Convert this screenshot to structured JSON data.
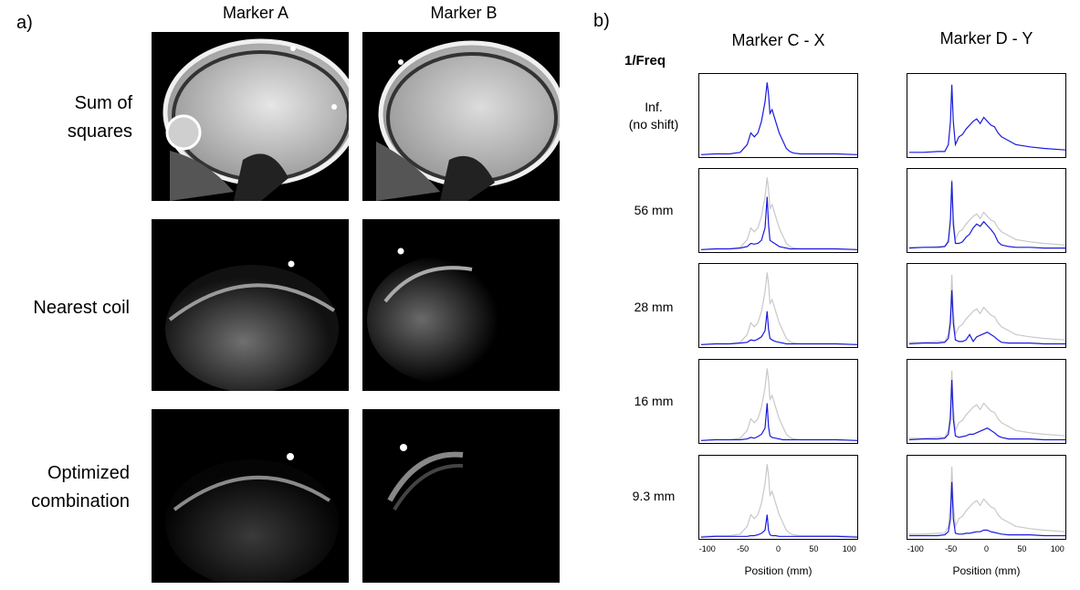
{
  "panel_a": {
    "label": "a)",
    "columns": [
      "Marker A",
      "Marker B"
    ],
    "rows": [
      {
        "label_lines": [
          "Sum of",
          "squares"
        ]
      },
      {
        "label_lines": [
          "Nearest coil"
        ]
      },
      {
        "label_lines": [
          "Optimized",
          "combination"
        ]
      }
    ]
  },
  "panel_b": {
    "label": "b)",
    "freq_header": "1/Freq"
  },
  "chart_data": [
    {
      "type": "line",
      "title": "Marker C - X",
      "xlabel": "Position (mm)",
      "xlim": [
        -110,
        110
      ],
      "xticks": [
        -100,
        -50,
        0,
        50,
        100
      ],
      "row_labels": [
        [
          "Inf.",
          "(no shift)"
        ],
        [
          "56 mm"
        ],
        [
          "28 mm"
        ],
        [
          "16 mm"
        ],
        [
          "9.3 mm"
        ]
      ],
      "series_color": "#1a1adc",
      "reference_color": "#c8c8c8",
      "x": [
        -110,
        -90,
        -70,
        -55,
        -45,
        -40,
        -35,
        -30,
        -25,
        -20,
        -17,
        -15,
        -13,
        -10,
        -5,
        0,
        5,
        10,
        15,
        20,
        30,
        40,
        60,
        80,
        110
      ],
      "reference": [
        0.02,
        0.03,
        0.03,
        0.05,
        0.15,
        0.3,
        0.25,
        0.3,
        0.45,
        0.7,
        0.95,
        0.8,
        0.55,
        0.6,
        0.45,
        0.3,
        0.2,
        0.1,
        0.06,
        0.04,
        0.03,
        0.03,
        0.03,
        0.03,
        0.02
      ],
      "series": [
        {
          "values": [
            0.02,
            0.03,
            0.03,
            0.05,
            0.15,
            0.3,
            0.25,
            0.3,
            0.45,
            0.7,
            0.95,
            0.8,
            0.55,
            0.6,
            0.45,
            0.3,
            0.2,
            0.1,
            0.06,
            0.04,
            0.03,
            0.03,
            0.03,
            0.03,
            0.02
          ]
        },
        {
          "values": [
            0.02,
            0.03,
            0.03,
            0.04,
            0.06,
            0.1,
            0.09,
            0.1,
            0.14,
            0.3,
            0.7,
            0.35,
            0.14,
            0.12,
            0.09,
            0.06,
            0.05,
            0.04,
            0.03,
            0.03,
            0.03,
            0.03,
            0.03,
            0.03,
            0.02
          ]
        },
        {
          "values": [
            0.02,
            0.03,
            0.03,
            0.04,
            0.05,
            0.08,
            0.07,
            0.09,
            0.12,
            0.2,
            0.45,
            0.22,
            0.1,
            0.08,
            0.06,
            0.05,
            0.04,
            0.03,
            0.03,
            0.03,
            0.03,
            0.03,
            0.03,
            0.03,
            0.02
          ]
        },
        {
          "values": [
            0.02,
            0.03,
            0.03,
            0.03,
            0.04,
            0.06,
            0.05,
            0.07,
            0.1,
            0.18,
            0.5,
            0.2,
            0.08,
            0.06,
            0.05,
            0.04,
            0.03,
            0.03,
            0.03,
            0.03,
            0.03,
            0.03,
            0.03,
            0.03,
            0.02
          ]
        },
        {
          "values": [
            0.01,
            0.02,
            0.02,
            0.02,
            0.02,
            0.03,
            0.03,
            0.04,
            0.06,
            0.1,
            0.3,
            0.1,
            0.04,
            0.03,
            0.03,
            0.02,
            0.02,
            0.02,
            0.02,
            0.02,
            0.02,
            0.02,
            0.02,
            0.02,
            0.01
          ]
        }
      ]
    },
    {
      "type": "line",
      "title": "Marker D - Y",
      "xlabel": "Position (mm)",
      "xlim": [
        -110,
        110
      ],
      "xticks": [
        -100,
        -50,
        0,
        50,
        100
      ],
      "series_color": "#1a1adc",
      "reference_color": "#c8c8c8",
      "x": [
        -110,
        -90,
        -70,
        -60,
        -55,
        -52,
        -50,
        -48,
        -45,
        -40,
        -35,
        -30,
        -25,
        -20,
        -15,
        -10,
        -5,
        0,
        5,
        10,
        15,
        20,
        30,
        40,
        60,
        80,
        110
      ],
      "reference": [
        0.05,
        0.05,
        0.06,
        0.06,
        0.15,
        0.45,
        0.92,
        0.45,
        0.15,
        0.25,
        0.28,
        0.35,
        0.4,
        0.45,
        0.48,
        0.42,
        0.5,
        0.45,
        0.4,
        0.38,
        0.3,
        0.25,
        0.2,
        0.15,
        0.12,
        0.1,
        0.08
      ],
      "series": [
        {
          "values": [
            0.05,
            0.05,
            0.06,
            0.06,
            0.15,
            0.45,
            0.92,
            0.45,
            0.15,
            0.25,
            0.28,
            0.35,
            0.4,
            0.45,
            0.48,
            0.42,
            0.5,
            0.45,
            0.4,
            0.38,
            0.3,
            0.25,
            0.2,
            0.15,
            0.12,
            0.1,
            0.08
          ]
        },
        {
          "values": [
            0.04,
            0.05,
            0.05,
            0.06,
            0.12,
            0.4,
            0.9,
            0.35,
            0.1,
            0.1,
            0.12,
            0.18,
            0.22,
            0.3,
            0.35,
            0.32,
            0.38,
            0.33,
            0.28,
            0.22,
            0.12,
            0.08,
            0.06,
            0.05,
            0.05,
            0.04,
            0.04
          ]
        },
        {
          "values": [
            0.03,
            0.04,
            0.04,
            0.05,
            0.1,
            0.3,
            0.72,
            0.3,
            0.08,
            0.06,
            0.06,
            0.08,
            0.15,
            0.06,
            0.12,
            0.14,
            0.16,
            0.18,
            0.15,
            0.12,
            0.08,
            0.05,
            0.04,
            0.04,
            0.04,
            0.03,
            0.03
          ]
        },
        {
          "values": [
            0.03,
            0.04,
            0.04,
            0.05,
            0.1,
            0.3,
            0.8,
            0.3,
            0.08,
            0.06,
            0.07,
            0.08,
            0.1,
            0.1,
            0.12,
            0.14,
            0.16,
            0.18,
            0.15,
            0.12,
            0.08,
            0.06,
            0.04,
            0.04,
            0.04,
            0.03,
            0.03
          ]
        },
        {
          "values": [
            0.03,
            0.03,
            0.03,
            0.04,
            0.08,
            0.25,
            0.72,
            0.25,
            0.06,
            0.05,
            0.05,
            0.06,
            0.06,
            0.07,
            0.08,
            0.08,
            0.1,
            0.1,
            0.08,
            0.07,
            0.06,
            0.05,
            0.04,
            0.04,
            0.04,
            0.03,
            0.03
          ]
        }
      ]
    }
  ]
}
